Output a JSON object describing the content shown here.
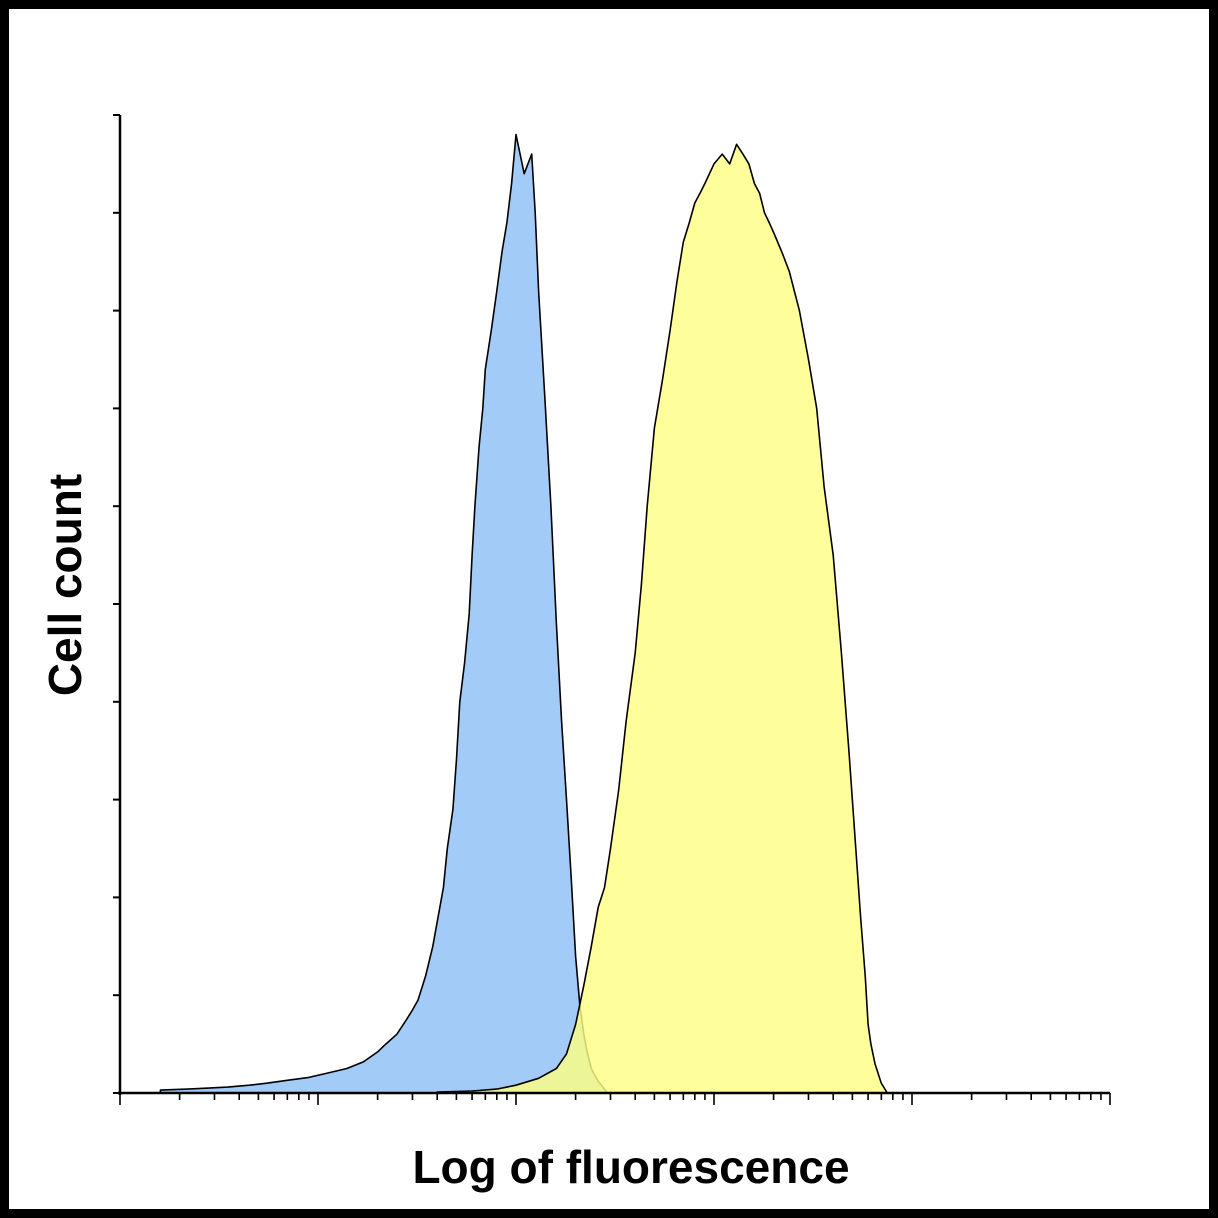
{
  "chart_data": {
    "type": "area",
    "xlabel": "Log of fluorescence",
    "ylabel": "Cell count",
    "x_scale": "log",
    "xlim": [
      1,
      100000
    ],
    "ylim": [
      0,
      100
    ],
    "grid": false,
    "series": [
      {
        "color": "#8dc0f5",
        "x": [
          1.6,
          2.2,
          2.8,
          3.5,
          4.5,
          5.5,
          7,
          9,
          11,
          14,
          17,
          20,
          22,
          25,
          28,
          30,
          32,
          35,
          38,
          40,
          43,
          45,
          48,
          50,
          52,
          55,
          58,
          60,
          62,
          65,
          68,
          70,
          75,
          80,
          85,
          90,
          95,
          100,
          110,
          120,
          125,
          130,
          140,
          150,
          160,
          170,
          180,
          190,
          200,
          210,
          220,
          230,
          240,
          250,
          260,
          270,
          280,
          290
        ],
        "y": [
          0.3,
          0.4,
          0.5,
          0.6,
          0.8,
          1.0,
          1.3,
          1.6,
          2.0,
          2.5,
          3.2,
          4.2,
          5.0,
          6.0,
          7.5,
          8.5,
          9.5,
          12.0,
          15.0,
          17.5,
          21.0,
          25.0,
          29.0,
          34.0,
          40.0,
          44.0,
          49.0,
          55.0,
          60.0,
          66.0,
          70.0,
          74.0,
          78.0,
          82.0,
          86.0,
          89.0,
          93.0,
          98.0,
          94.0,
          96.0,
          90.0,
          82.0,
          71.0,
          60.0,
          48.0,
          38.0,
          30.0,
          22.0,
          14.0,
          9.0,
          6.0,
          4.0,
          2.5,
          1.8,
          1.2,
          0.8,
          0.4,
          0.0
        ]
      },
      {
        "color": "#fefe84",
        "x": [
          40,
          60,
          80,
          100,
          130,
          160,
          180,
          200,
          220,
          240,
          260,
          280,
          300,
          330,
          360,
          400,
          430,
          460,
          500,
          550,
          600,
          650,
          700,
          750,
          800,
          850,
          900,
          1000,
          1100,
          1200,
          1300,
          1400,
          1500,
          1600,
          1700,
          1800,
          1900,
          2000,
          2200,
          2400,
          2700,
          3000,
          3300,
          3600,
          4000,
          4400,
          4800,
          5200,
          5500,
          5800,
          6000,
          6200,
          6500,
          7000,
          7500
        ],
        "y": [
          0.1,
          0.2,
          0.4,
          0.8,
          1.5,
          2.5,
          4.0,
          7.0,
          11.0,
          15.0,
          19.0,
          21.0,
          25.0,
          31.0,
          38.0,
          45.0,
          52.0,
          60.0,
          68.0,
          73.0,
          78.0,
          83.0,
          87.0,
          89.0,
          91.0,
          92.0,
          93.0,
          95.0,
          96.0,
          95.0,
          97.0,
          96.0,
          95.0,
          93.0,
          92.0,
          90.0,
          89.0,
          88.0,
          86.0,
          84.0,
          80.0,
          75.0,
          70.0,
          62.0,
          55.0,
          45.0,
          35.0,
          25.0,
          18.0,
          12.0,
          7.0,
          5.0,
          3.0,
          1.0,
          0.0
        ]
      }
    ]
  }
}
